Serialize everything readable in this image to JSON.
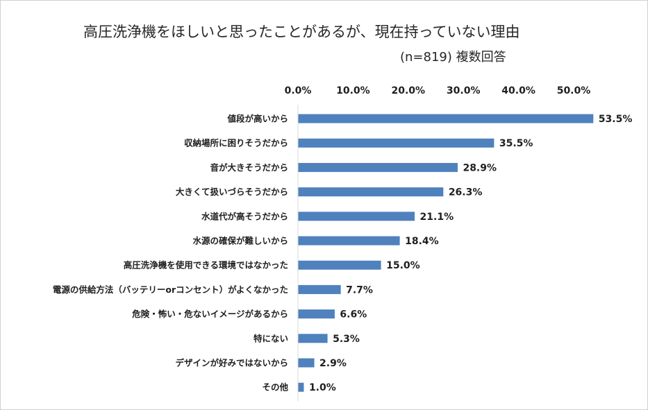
{
  "chart_data": {
    "type": "bar",
    "orientation": "horizontal",
    "title": "高圧洗浄機をほしいと思ったことがあるが、現在持っていない理由",
    "subtitle": "(n=819) 複数回答",
    "x_ticks": [
      "0.0%",
      "10.0%",
      "20.0%",
      "30.0%",
      "40.0%",
      "50.0%"
    ],
    "xlim": [
      0,
      50
    ],
    "tick_axis_position": "top",
    "grid": false,
    "bar_color": "#4f81bd",
    "categories": [
      "値段が高いから",
      "収納場所に困りそうだから",
      "音が大きそうだから",
      "大きくて扱いづらそうだから",
      "水道代が高そうだから",
      "水源の確保が難しいから",
      "高圧洗浄機を使用できる環境ではなかった",
      "電源の供給方法（バッテリーorコンセント）がよくなかった",
      "危険・怖い・危ないイメージがあるから",
      "特にない",
      "デザインが好みではないから",
      "その他"
    ],
    "values": [
      53.5,
      35.5,
      28.9,
      26.3,
      21.1,
      18.4,
      15.0,
      7.7,
      6.6,
      5.3,
      2.9,
      1.0
    ],
    "value_labels": [
      "53.5%",
      "35.5%",
      "28.9%",
      "26.3%",
      "21.1%",
      "18.4%",
      "15.0%",
      "7.7%",
      "6.6%",
      "5.3%",
      "2.9%",
      "1.0%"
    ]
  }
}
